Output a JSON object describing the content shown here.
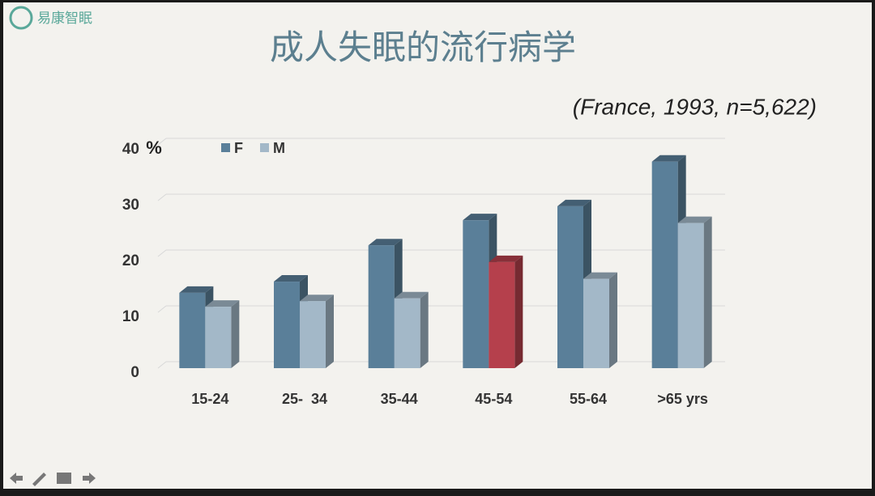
{
  "logo": "易康智眠",
  "chart_data": {
    "type": "bar3d",
    "title": "成人失眠的流行病学",
    "subtitle": "(France, 1993, n=5,622)",
    "y_unit": "%",
    "categories": [
      "15-24",
      "25-  34",
      "35-44",
      "45-54",
      "55-64",
      ">65 yrs"
    ],
    "series": [
      {
        "name": "F",
        "color": "#5a7f99",
        "values": [
          13.5,
          15.5,
          22,
          26.5,
          29,
          37
        ]
      },
      {
        "name": "M",
        "color": "#a3b8c8",
        "values": [
          11,
          12,
          12.5,
          19,
          16,
          26
        ],
        "colors": [
          "#a3b8c8",
          "#a3b8c8",
          "#a3b8c8",
          "#b5404c",
          "#a3b8c8",
          "#a3b8c8"
        ]
      }
    ],
    "ylim": [
      0,
      40
    ],
    "yticks": [
      0,
      10,
      20,
      30,
      40
    ],
    "grid": true,
    "legend": "top-left"
  }
}
